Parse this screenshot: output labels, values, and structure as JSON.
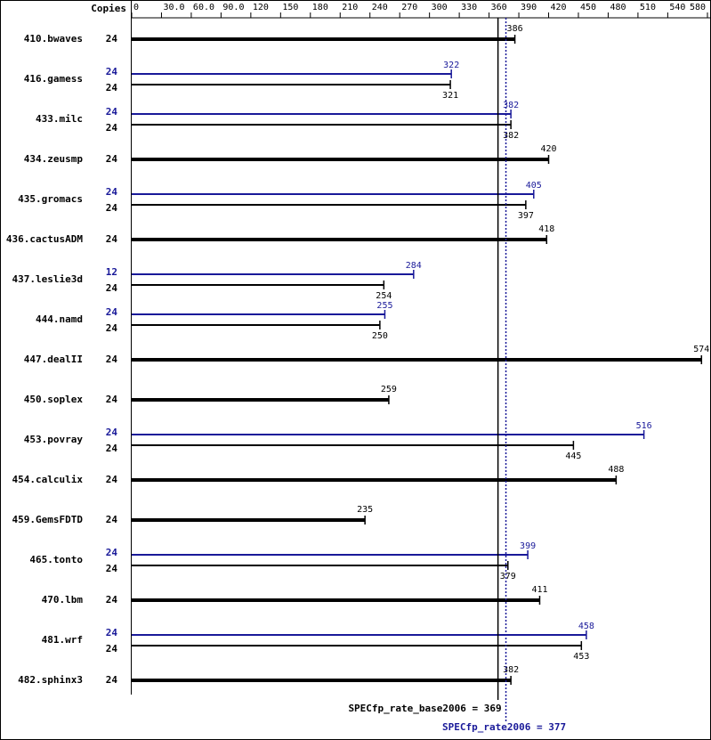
{
  "chart_data": {
    "type": "bar",
    "copies_header": "Copies",
    "categories": [
      "410.bwaves",
      "416.gamess",
      "433.milc",
      "434.zeusmp",
      "435.gromacs",
      "436.cactusADM",
      "437.leslie3d",
      "444.namd",
      "447.dealII",
      "450.soplex",
      "453.povray",
      "454.calculix",
      "459.GemsFDTD",
      "465.tonto",
      "470.lbm",
      "481.wrf",
      "482.sphinx3"
    ],
    "base": {
      "color": "#000000",
      "copies": [
        24,
        24,
        24,
        24,
        24,
        24,
        24,
        24,
        24,
        24,
        24,
        24,
        24,
        24,
        24,
        24,
        24
      ],
      "values": [
        386,
        321,
        382,
        420,
        397,
        418,
        254,
        250,
        574,
        259,
        445,
        488,
        235,
        379,
        411,
        453,
        382
      ]
    },
    "peak": {
      "color": "#191999",
      "copies": [
        null,
        24,
        24,
        null,
        24,
        null,
        12,
        24,
        null,
        null,
        24,
        null,
        null,
        24,
        null,
        24,
        null
      ],
      "values": [
        null,
        322,
        382,
        null,
        405,
        null,
        284,
        255,
        null,
        null,
        516,
        null,
        null,
        399,
        null,
        458,
        null
      ]
    },
    "xlim": [
      0,
      580
    ],
    "xticks": [
      0,
      {
        "value": 30,
        "label": "30.0"
      },
      {
        "value": 60,
        "label": "60.0"
      },
      {
        "value": 90,
        "label": "90.0"
      },
      120,
      150,
      180,
      210,
      240,
      270,
      300,
      330,
      360,
      390,
      420,
      450,
      480,
      510,
      540,
      580
    ],
    "base_metric": {
      "value": 369,
      "label": "SPECfp_rate_base2006 = 369"
    },
    "peak_metric": {
      "value": 377,
      "label": "SPECfp_rate2006 = 377"
    }
  }
}
